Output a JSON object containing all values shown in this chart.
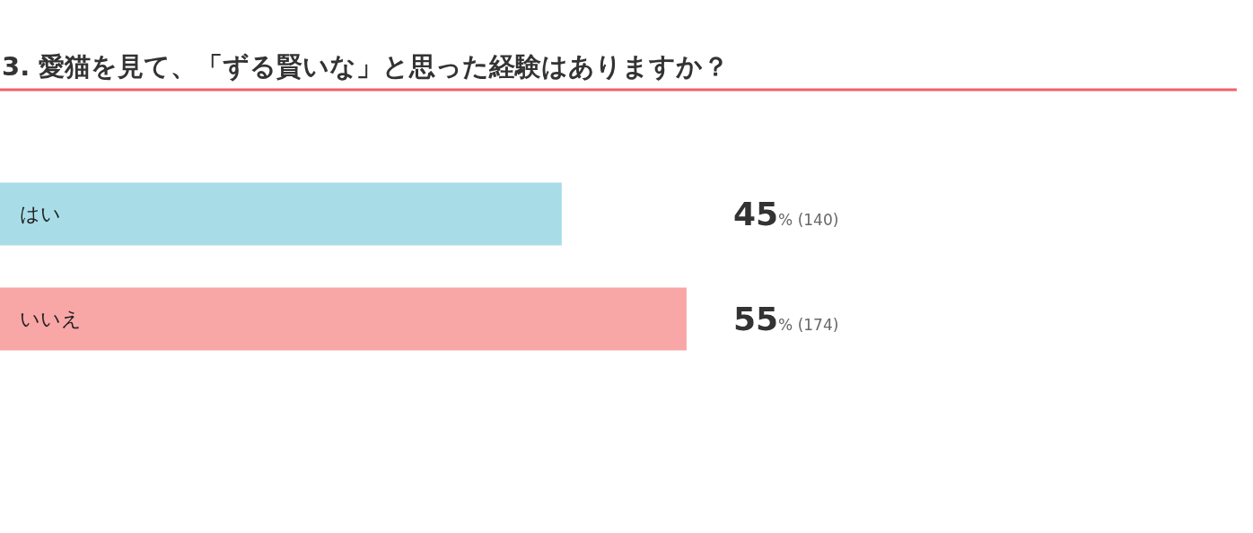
{
  "chart_data": {
    "type": "bar",
    "orientation": "horizontal",
    "title": "3. 愛猫を見て、「ずる賢いな」と思った経験はありますか？",
    "categories": [
      "はい",
      "いいえ"
    ],
    "values": [
      45,
      55
    ],
    "colors": [
      "#a8dde8",
      "#f9a6a6"
    ],
    "value_labels": [
      "45% (140)",
      "55% (174)"
    ]
  }
}
